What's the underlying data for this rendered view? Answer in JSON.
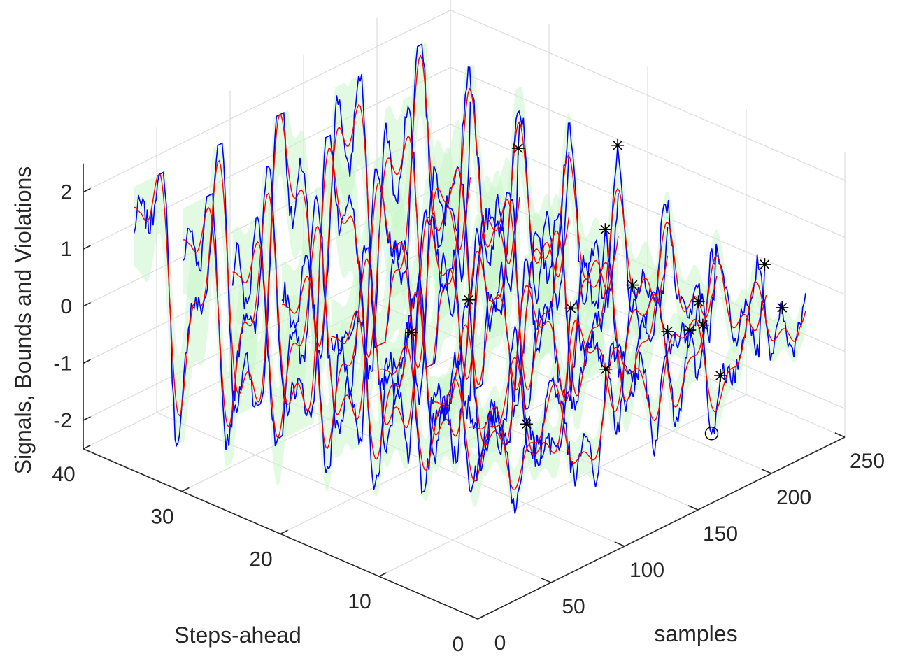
{
  "chart_data": {
    "type": "line3d",
    "title": "",
    "xlabel": "samples",
    "ylabel": "Steps-ahead",
    "zlabel": "Signals, Bounds and Violations",
    "xlim": [
      0,
      250
    ],
    "ylim": [
      0,
      40
    ],
    "zlim": [
      -2.5,
      2.5
    ],
    "x_ticks": [
      "0",
      "50",
      "100",
      "150",
      "200",
      "250"
    ],
    "y_ticks": [
      "0",
      "10",
      "20",
      "30",
      "40"
    ],
    "z_ticks": [
      "2",
      "1",
      "0",
      "-1",
      "-2"
    ],
    "grid": true,
    "step_series": [
      1,
      5,
      10,
      15,
      20,
      25,
      30,
      35
    ],
    "sample_range": [
      1,
      230
    ],
    "series": [
      {
        "name": "signal",
        "color": "#0000ff"
      },
      {
        "name": "prediction",
        "color": "#ff0000"
      },
      {
        "name": "bounds",
        "color": "#c8f5c8"
      },
      {
        "name": "violations-above",
        "marker": "asterisk",
        "color": "#000000"
      },
      {
        "name": "violations-below",
        "marker": "circle",
        "color": "#000000"
      }
    ]
  }
}
